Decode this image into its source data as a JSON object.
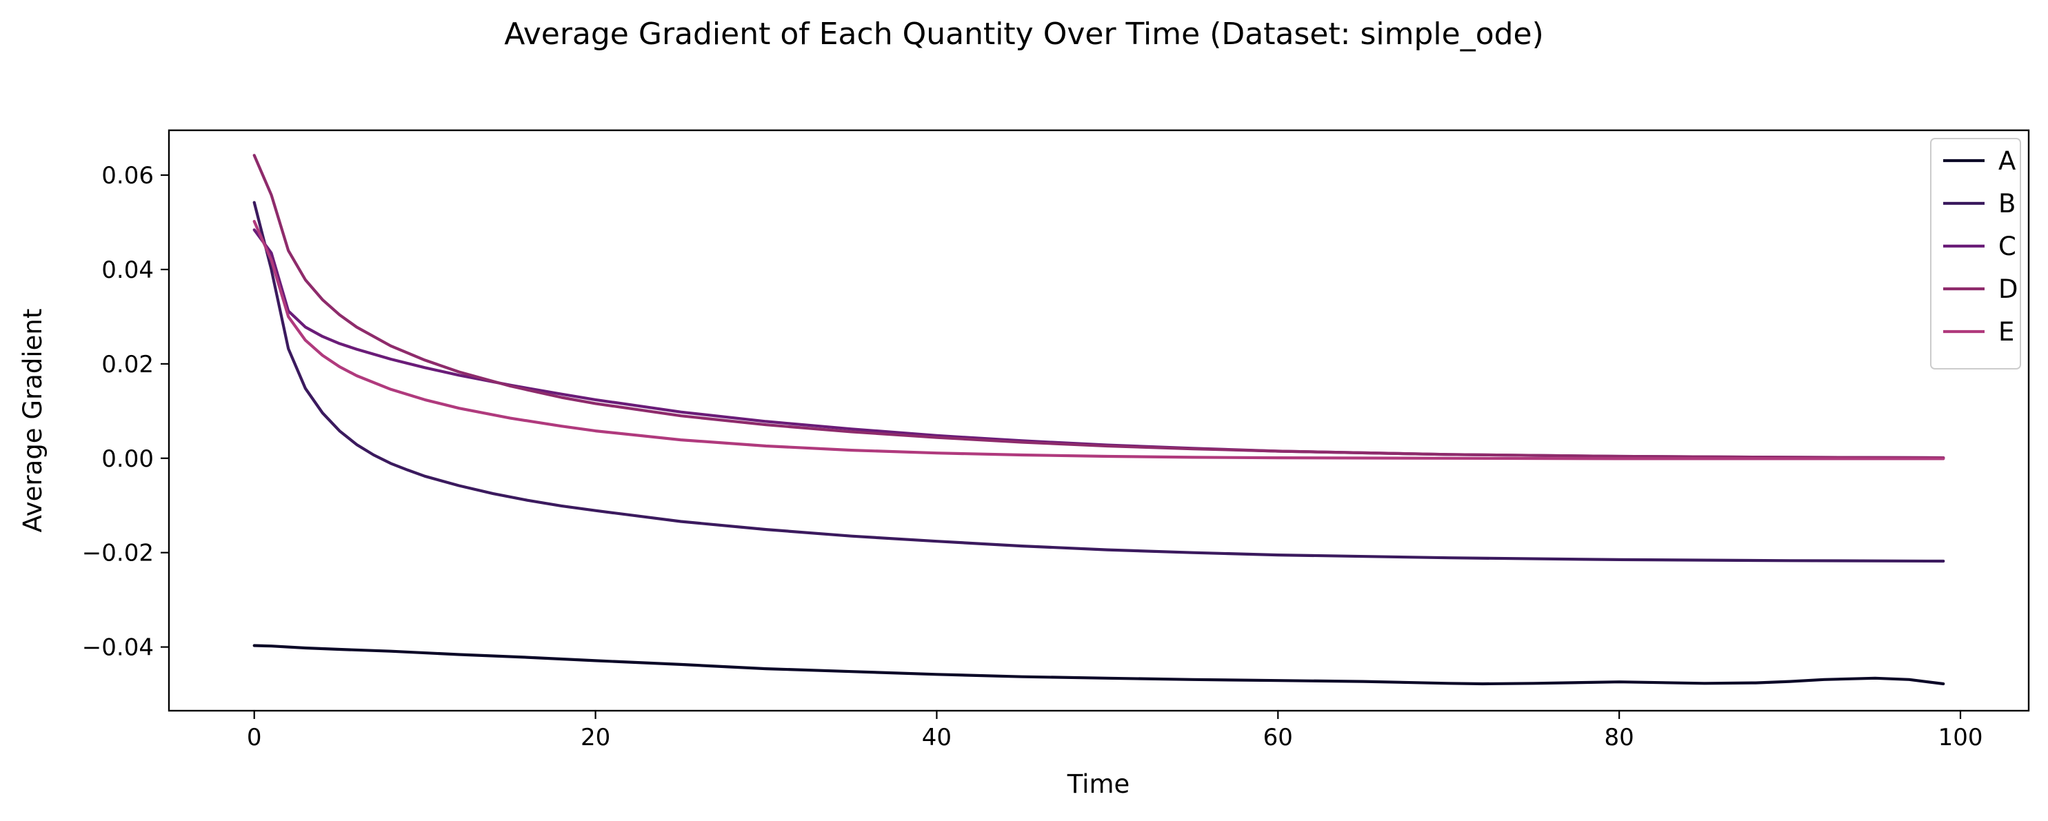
{
  "chart_data": {
    "type": "line",
    "title": "Average Gradient of Each Quantity Over Time (Dataset: simple_ode)",
    "xlabel": "Time",
    "ylabel": "Average Gradient",
    "xlim": [
      -5,
      104
    ],
    "ylim": [
      -0.0535,
      0.0695
    ],
    "x_ticks": [
      0,
      20,
      40,
      60,
      80,
      100
    ],
    "x_tick_labels": [
      "0",
      "20",
      "40",
      "60",
      "80",
      "100"
    ],
    "y_ticks": [
      -0.04,
      -0.02,
      0.0,
      0.02,
      0.04,
      0.06
    ],
    "y_tick_labels": [
      "−0.04",
      "−0.02",
      "0.00",
      "0.02",
      "0.04",
      "0.06"
    ],
    "grid": false,
    "legend": "top-right",
    "series": [
      {
        "name": "A",
        "color": "#0b0727",
        "x": [
          0,
          1,
          3,
          5,
          8,
          12,
          16,
          20,
          25,
          30,
          35,
          40,
          45,
          50,
          55,
          60,
          65,
          70,
          72,
          75,
          80,
          85,
          88,
          90,
          92,
          95,
          97,
          99
        ],
        "y": [
          -0.0397,
          -0.0398,
          -0.0402,
          -0.0405,
          -0.0409,
          -0.0416,
          -0.0422,
          -0.0429,
          -0.0437,
          -0.0446,
          -0.0452,
          -0.0458,
          -0.0463,
          -0.0466,
          -0.0469,
          -0.0471,
          -0.0473,
          -0.0477,
          -0.0478,
          -0.0477,
          -0.0474,
          -0.0477,
          -0.0476,
          -0.0473,
          -0.0469,
          -0.0466,
          -0.0469,
          -0.0478
        ]
      },
      {
        "name": "B",
        "color": "#3b1a5e",
        "x": [
          0,
          1,
          2,
          3,
          4,
          5,
          6,
          7,
          8,
          9,
          10,
          12,
          14,
          16,
          18,
          20,
          25,
          30,
          35,
          40,
          45,
          50,
          55,
          60,
          70,
          80,
          90,
          99
        ],
        "y": [
          0.0542,
          0.04,
          0.0232,
          0.0148,
          0.0096,
          0.0058,
          0.0029,
          0.0007,
          -0.0011,
          -0.0025,
          -0.0038,
          -0.0058,
          -0.0075,
          -0.0089,
          -0.0101,
          -0.0111,
          -0.0134,
          -0.0151,
          -0.0165,
          -0.0176,
          -0.0186,
          -0.0194,
          -0.02,
          -0.0205,
          -0.0211,
          -0.0215,
          -0.0217,
          -0.0218
        ]
      },
      {
        "name": "C",
        "color": "#6a1c78",
        "x": [
          0,
          1,
          2,
          3,
          4,
          5,
          6,
          8,
          10,
          12,
          15,
          18,
          20,
          25,
          30,
          35,
          40,
          45,
          50,
          55,
          60,
          70,
          80,
          90,
          99
        ],
        "y": [
          0.0484,
          0.0435,
          0.0312,
          0.0278,
          0.0258,
          0.0243,
          0.0231,
          0.021,
          0.0192,
          0.0176,
          0.0155,
          0.0136,
          0.0124,
          0.0098,
          0.0078,
          0.0062,
          0.0048,
          0.0037,
          0.0028,
          0.0021,
          0.0015,
          0.0008,
          0.0004,
          0.0002,
          0.0001
        ]
      },
      {
        "name": "D",
        "color": "#8e2b6b",
        "x": [
          0,
          1,
          2,
          3,
          4,
          5,
          6,
          8,
          10,
          12,
          15,
          18,
          20,
          25,
          30,
          35,
          40,
          45,
          50,
          55,
          60,
          70,
          80,
          90,
          99
        ],
        "y": [
          0.0642,
          0.0558,
          0.044,
          0.0378,
          0.0336,
          0.0304,
          0.0278,
          0.0238,
          0.0208,
          0.0183,
          0.0153,
          0.0129,
          0.0116,
          0.009,
          0.0071,
          0.0056,
          0.0044,
          0.0034,
          0.0026,
          0.002,
          0.0015,
          0.0008,
          0.0004,
          0.0002,
          0.0001
        ]
      },
      {
        "name": "E",
        "color": "#b03a7d",
        "x": [
          0,
          1,
          2,
          3,
          4,
          5,
          6,
          8,
          10,
          12,
          15,
          18,
          20,
          25,
          30,
          35,
          40,
          45,
          50,
          55,
          60,
          70,
          80,
          90,
          99
        ],
        "y": [
          0.0502,
          0.042,
          0.03,
          0.025,
          0.0218,
          0.0194,
          0.0175,
          0.0146,
          0.0124,
          0.0106,
          0.0085,
          0.0068,
          0.0058,
          0.0039,
          0.0026,
          0.0017,
          0.0011,
          0.0007,
          0.0004,
          0.0002,
          0.0001,
          0.0,
          -0.0001,
          -0.0001,
          -0.0001
        ]
      }
    ]
  }
}
